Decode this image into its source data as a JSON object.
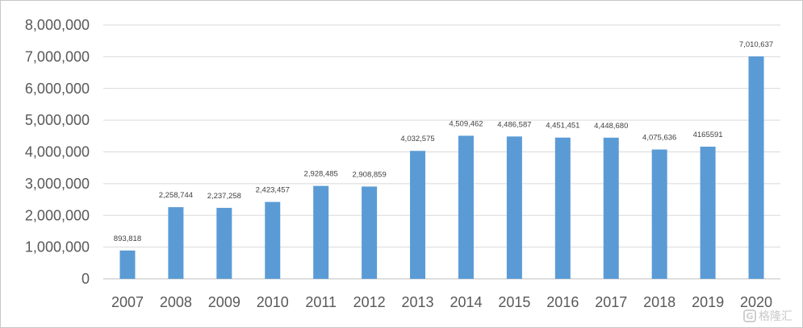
{
  "chart_data": {
    "type": "bar",
    "title": "",
    "xlabel": "",
    "ylabel": "",
    "ylim": [
      0,
      8000000
    ],
    "yticks": [
      0,
      1000000,
      2000000,
      3000000,
      4000000,
      5000000,
      6000000,
      7000000,
      8000000
    ],
    "ytick_labels": [
      "0",
      "1,000,000",
      "2,000,000",
      "3,000,000",
      "4,000,000",
      "5,000,000",
      "6,000,000",
      "7,000,000",
      "8,000,000"
    ],
    "categories": [
      "2007",
      "2008",
      "2009",
      "2010",
      "2011",
      "2012",
      "2013",
      "2014",
      "2015",
      "2016",
      "2017",
      "2018",
      "2019",
      "2020"
    ],
    "values": [
      893818,
      2258744,
      2237258,
      2423457,
      2928485,
      2908859,
      4032575,
      4509462,
      4486587,
      4451451,
      4448680,
      4075636,
      4165591,
      7010637
    ],
    "data_labels": [
      "893,818",
      "2,258,744",
      "2,237,258",
      "2,423,457",
      "2,928,485",
      "2,908,859",
      "4,032,575",
      "4,509,462",
      "4,486,587",
      "4,451,451",
      "4,448,680",
      "4,075,636",
      "4165591",
      "7,010,637"
    ],
    "bar_color": "#5B9BD5",
    "grid": true,
    "legend": "none"
  },
  "watermark": {
    "logo_glyph": "G",
    "text": "格隆汇"
  }
}
